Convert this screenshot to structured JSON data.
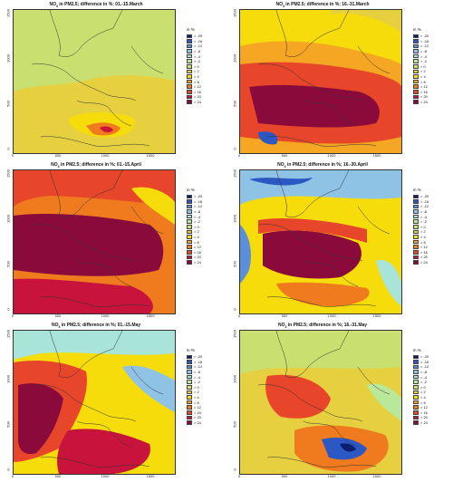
{
  "legend": {
    "title": "in %",
    "labels": [
      "> -20",
      "> -16",
      "> -12",
      "> -8",
      "> -4",
      "> -2",
      "> 0",
      "> 2",
      "> 4",
      "> 8",
      "> 12",
      "> 16",
      "> 20",
      "> 24"
    ],
    "colors": [
      "#0a1f6e",
      "#2c58c4",
      "#5b8fd9",
      "#8fc3e6",
      "#a8e4d8",
      "#b9e89a",
      "#c9e070",
      "#e6d040",
      "#f6dc0a",
      "#f5a623",
      "#f07a1e",
      "#e8462a",
      "#c8143c",
      "#8a0a3c"
    ]
  },
  "x_ticks": [
    "0",
    "500",
    "1000",
    "1500"
  ],
  "y_ticks": [
    "0",
    "500",
    "1000",
    "1500"
  ],
  "panels": [
    {
      "title_pre": "NO",
      "title_sub": "3",
      "title_post": " in PM2.5; difference in %; 01.-15.March"
    },
    {
      "title_pre": "NO",
      "title_sub": "3",
      "title_post": " in PM2.5; difference in %; 16.-31.March"
    },
    {
      "title_pre": "NO",
      "title_sub": "3",
      "title_post": " in PM2.5; difference in %; 01.-15.April"
    },
    {
      "title_pre": "NO",
      "title_sub": "3",
      "title_post": " in PM2.5; difference in %; 16.-30.April"
    },
    {
      "title_pre": "NO",
      "title_sub": "3",
      "title_post": " in PM2.5; difference in %; 01.-15.May"
    },
    {
      "title_pre": "NO",
      "title_sub": "3",
      "title_post": " in PM2.5; difference in %; 16.-31.May"
    }
  ]
}
